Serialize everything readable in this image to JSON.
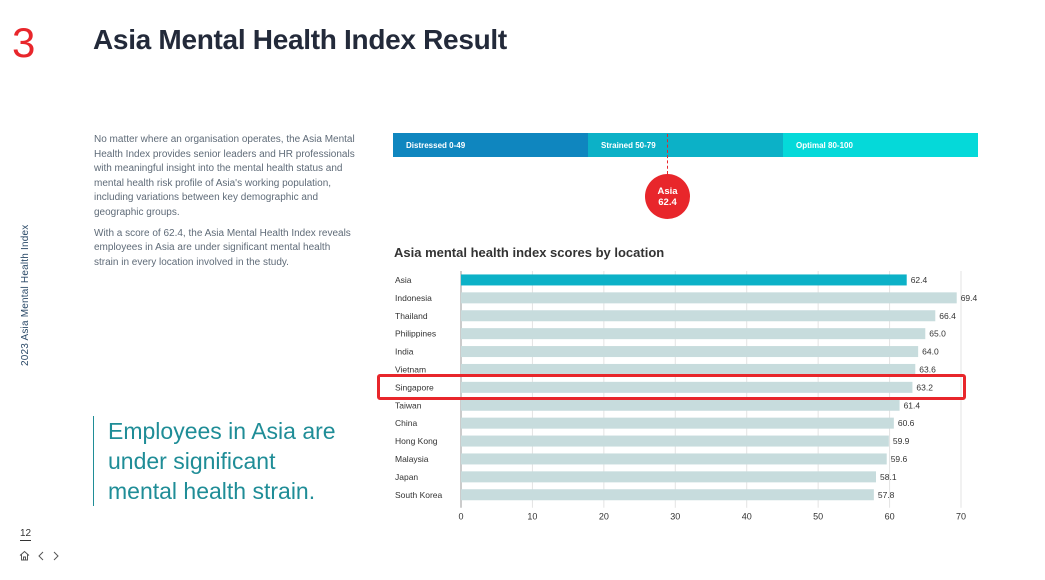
{
  "section_number": "3",
  "title": "Asia Mental Health Index Result",
  "side_label": "2023 Asia Mental Health Index",
  "intro": {
    "p1": "No matter where an organisation operates, the Asia Mental Health Index provides senior leaders and HR professionals with meaningful insight into the mental health status and mental health risk profile of Asia's working population, including variations between key demographic and geographic groups.",
    "p2": "With a score of 62.4, the Asia Mental Health Index reveals employees in Asia are under significant mental health strain in every location involved in the study."
  },
  "quote": "Employees in Asia are under significant mental health strain.",
  "page_number": "12",
  "nav": {
    "home_icon": "home-icon",
    "prev_icon": "chevron-left-icon",
    "next_icon": "chevron-right-icon"
  },
  "band": {
    "distressed": "Distressed 0-49",
    "strained": "Strained 50-79",
    "optimal": "Optimal 80-100"
  },
  "marker": {
    "label": "Asia",
    "value": "62.4"
  },
  "colors": {
    "accent_red": "#e8262b",
    "asia_bar": "#0cb1c7",
    "other_bar": "#c7dcdd",
    "distressed": "#0f86bf",
    "strained": "#0cb1c7",
    "optimal": "#05d9d9",
    "quote": "#1f8d97"
  },
  "chart_data": {
    "type": "bar",
    "orientation": "horizontal",
    "title": "Asia mental health index scores by location",
    "categories": [
      "Asia",
      "Indonesia",
      "Thailand",
      "Philippines",
      "India",
      "Vietnam",
      "Singapore",
      "Taiwan",
      "China",
      "Hong Kong",
      "Malaysia",
      "Japan",
      "South Korea"
    ],
    "values": [
      62.4,
      69.4,
      66.4,
      65.0,
      64.0,
      63.6,
      63.2,
      61.4,
      60.6,
      59.9,
      59.6,
      58.1,
      57.8
    ],
    "value_labels": [
      "62.4",
      "69.4",
      "66.4",
      "65.0",
      "64.0",
      "63.6",
      "63.2",
      "61.4",
      "60.6",
      "59.9",
      "59.6",
      "58.1",
      "57.8"
    ],
    "xlim": [
      0,
      70
    ],
    "xticks": [
      "0",
      "10",
      "20",
      "30",
      "40",
      "50",
      "60",
      "70"
    ],
    "grid": true,
    "highlighted": "Asia",
    "boxed": "Singapore"
  }
}
